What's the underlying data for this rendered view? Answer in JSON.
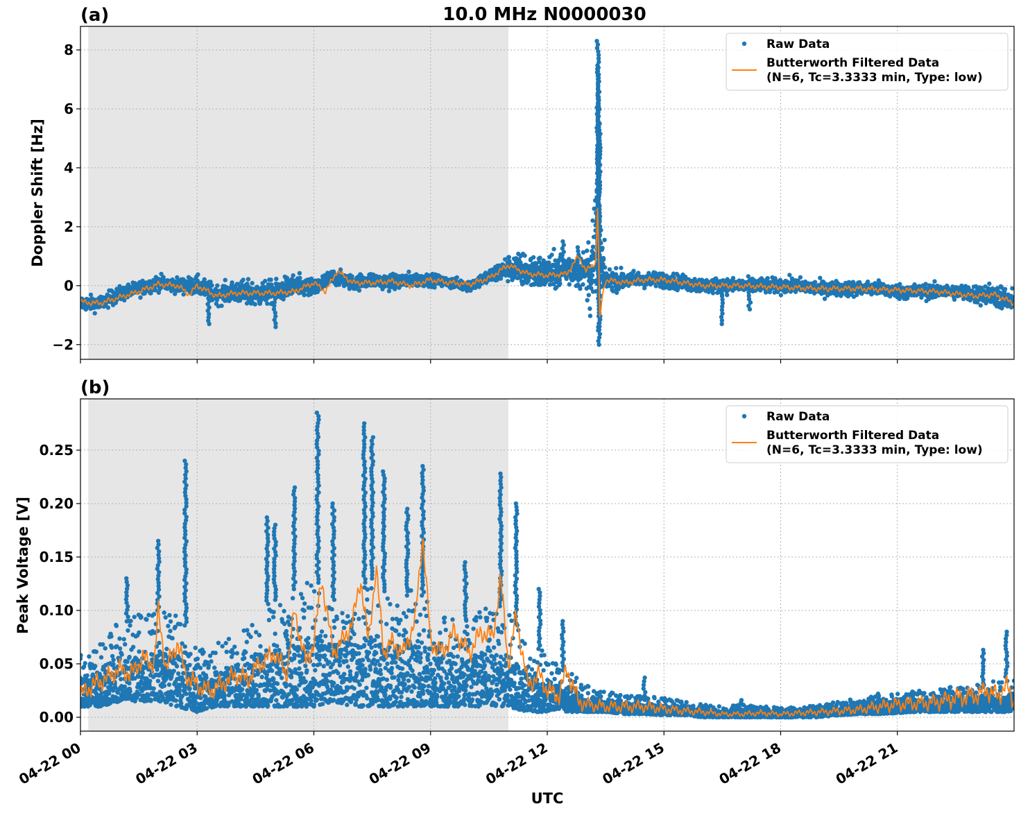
{
  "figure": {
    "title": "10.0 MHz N0000030",
    "xlabel": "UTC",
    "colors": {
      "raw": "#1f77b4",
      "filtered": "#ff7f0e",
      "night_shade": "#e6e6e6",
      "grid": "#b0b0b0"
    }
  },
  "chart_data": [
    {
      "type": "scatter",
      "panel_label": "(a)",
      "title": "10.0 MHz N0000030",
      "xlabel": "",
      "ylabel": "Doppler Shift [Hz]",
      "xlim_hours": [
        0,
        24
      ],
      "ylim": [
        -2.5,
        8.8
      ],
      "yticks": [
        -2,
        0,
        2,
        4,
        6,
        8
      ],
      "ytick_labels": [
        "−2",
        "0",
        "2",
        "4",
        "6",
        "8"
      ],
      "xticks_hours": [
        0,
        3,
        6,
        9,
        12,
        15,
        18,
        21
      ],
      "grid": true,
      "legend_position": "upper right",
      "shaded_interval_hours": [
        0.2,
        11.0
      ],
      "series": [
        {
          "name": "Raw Data",
          "style": "dots",
          "x_hours": [
            0.0,
            0.5,
            1.0,
            1.5,
            2.0,
            2.5,
            3.0,
            3.5,
            4.0,
            4.5,
            5.0,
            5.5,
            6.0,
            6.5,
            7.0,
            7.5,
            8.0,
            8.5,
            9.0,
            9.5,
            10.0,
            10.5,
            11.0,
            11.5,
            12.0,
            12.5,
            13.0,
            13.3,
            13.5,
            14.0,
            14.5,
            15.0,
            15.5,
            16.0,
            16.5,
            17.0,
            17.5,
            18.0,
            18.5,
            19.0,
            19.5,
            20.0,
            20.5,
            21.0,
            21.5,
            22.0,
            22.5,
            23.0,
            23.5,
            24.0
          ],
          "y_center": [
            -0.6,
            -0.6,
            -0.3,
            -0.1,
            0.1,
            0.0,
            0.0,
            -0.3,
            -0.2,
            -0.3,
            -0.2,
            0.0,
            -0.1,
            0.3,
            0.1,
            0.2,
            0.1,
            0.2,
            0.2,
            0.1,
            0.0,
            0.3,
            0.6,
            0.5,
            0.4,
            0.6,
            0.5,
            1.0,
            0.2,
            0.2,
            0.2,
            0.2,
            0.1,
            0.0,
            0.0,
            0.0,
            0.0,
            0.0,
            0.0,
            -0.1,
            -0.1,
            -0.1,
            -0.1,
            -0.2,
            -0.2,
            -0.2,
            -0.2,
            -0.3,
            -0.3,
            -0.6
          ],
          "y_spread": [
            0.2,
            0.2,
            0.2,
            0.2,
            0.2,
            0.2,
            0.25,
            0.25,
            0.3,
            0.35,
            0.3,
            0.3,
            0.25,
            0.2,
            0.2,
            0.2,
            0.2,
            0.2,
            0.15,
            0.15,
            0.15,
            0.2,
            0.35,
            0.5,
            0.45,
            0.5,
            0.5,
            3.0,
            0.3,
            0.25,
            0.2,
            0.2,
            0.2,
            0.2,
            0.2,
            0.2,
            0.2,
            0.2,
            0.2,
            0.2,
            0.2,
            0.2,
            0.2,
            0.2,
            0.2,
            0.2,
            0.2,
            0.25,
            0.3,
            0.35
          ],
          "outliers": [
            [
              13.3,
              8.3
            ],
            [
              13.32,
              7.4
            ],
            [
              13.3,
              6.4
            ],
            [
              13.34,
              5.5
            ],
            [
              13.31,
              4.6
            ],
            [
              13.33,
              -2.0
            ],
            [
              13.34,
              -1.5
            ],
            [
              3.3,
              -1.3
            ],
            [
              5.0,
              -1.4
            ],
            [
              16.5,
              -1.3
            ],
            [
              12.4,
              1.5
            ],
            [
              12.8,
              1.3
            ],
            [
              17.2,
              -0.8
            ]
          ]
        },
        {
          "name": "Butterworth Filtered Data\n(N=6, Tc=3.3333 min, Type: low)",
          "style": "line",
          "x_hours": [
            0.0,
            0.5,
            1.0,
            1.5,
            2.0,
            2.5,
            2.8,
            3.0,
            3.5,
            4.0,
            4.5,
            5.0,
            5.5,
            6.0,
            6.3,
            6.6,
            7.0,
            7.5,
            8.0,
            8.5,
            9.0,
            9.5,
            10.0,
            10.5,
            11.0,
            11.5,
            12.0,
            12.5,
            12.8,
            13.0,
            13.25,
            13.3,
            13.35,
            13.4,
            13.5,
            14.0,
            14.5,
            15.0,
            16.0,
            17.0,
            18.0,
            19.0,
            20.0,
            21.0,
            22.0,
            23.0,
            23.5,
            24.0
          ],
          "values": [
            -0.55,
            -0.6,
            -0.4,
            -0.2,
            0.05,
            0.0,
            -0.3,
            0.0,
            -0.35,
            -0.25,
            -0.25,
            -0.25,
            -0.2,
            0.1,
            -0.2,
            0.5,
            0.1,
            0.1,
            0.15,
            0.0,
            0.2,
            0.1,
            0.05,
            0.25,
            0.7,
            0.4,
            0.35,
            0.4,
            1.0,
            0.5,
            0.8,
            2.9,
            -1.3,
            -0.5,
            0.2,
            0.1,
            0.2,
            0.2,
            0.0,
            0.0,
            -0.05,
            -0.1,
            -0.1,
            -0.15,
            -0.2,
            -0.35,
            -0.3,
            -0.6
          ]
        }
      ]
    },
    {
      "type": "scatter",
      "panel_label": "(b)",
      "title": "",
      "xlabel": "UTC",
      "ylabel": "Peak Voltage [V]",
      "xlim_hours": [
        0,
        24
      ],
      "ylim": [
        -0.013,
        0.298
      ],
      "yticks": [
        0.0,
        0.05,
        0.1,
        0.15,
        0.2,
        0.25
      ],
      "ytick_labels": [
        "0.00",
        "0.05",
        "0.10",
        "0.15",
        "0.20",
        "0.25"
      ],
      "xticks_hours": [
        0,
        3,
        6,
        9,
        12,
        15,
        18,
        21
      ],
      "xtick_labels": [
        "04-22 00",
        "04-22 03",
        "04-22 06",
        "04-22 09",
        "04-22 12",
        "04-22 15",
        "04-22 18",
        "04-22 21"
      ],
      "grid": true,
      "legend_position": "upper right",
      "shaded_interval_hours": [
        0.2,
        11.0
      ],
      "series": [
        {
          "name": "Raw Data",
          "style": "dots",
          "x_hours": [
            0.0,
            0.5,
            1.0,
            1.5,
            2.0,
            2.5,
            3.0,
            3.5,
            4.0,
            4.5,
            5.0,
            5.5,
            6.0,
            6.5,
            7.0,
            7.5,
            8.0,
            8.5,
            9.0,
            9.5,
            10.0,
            10.5,
            11.0,
            11.5,
            12.0,
            12.5,
            13.0,
            13.5,
            14.0,
            14.5,
            15.0,
            15.5,
            16.0,
            16.5,
            17.0,
            17.5,
            18.0,
            18.5,
            19.0,
            19.5,
            20.0,
            20.5,
            21.0,
            21.5,
            22.0,
            22.5,
            23.0,
            23.5,
            24.0
          ],
          "y_low": [
            0.01,
            0.01,
            0.015,
            0.015,
            0.015,
            0.01,
            0.005,
            0.01,
            0.01,
            0.01,
            0.01,
            0.01,
            0.01,
            0.015,
            0.01,
            0.01,
            0.01,
            0.01,
            0.01,
            0.01,
            0.01,
            0.01,
            0.01,
            0.005,
            0.005,
            0.005,
            0.005,
            0.005,
            0.003,
            0.003,
            0.002,
            0.002,
            0.0,
            0.0,
            0.0,
            0.0,
            0.0,
            0.0,
            0.0,
            0.002,
            0.003,
            0.003,
            0.004,
            0.005,
            0.005,
            0.005,
            0.005,
            0.005,
            0.005
          ],
          "y_high": [
            0.06,
            0.07,
            0.09,
            0.1,
            0.1,
            0.1,
            0.065,
            0.07,
            0.08,
            0.1,
            0.11,
            0.12,
            0.13,
            0.11,
            0.12,
            0.13,
            0.11,
            0.12,
            0.11,
            0.1,
            0.09,
            0.11,
            0.1,
            0.07,
            0.06,
            0.045,
            0.03,
            0.025,
            0.02,
            0.02,
            0.018,
            0.015,
            0.012,
            0.01,
            0.012,
            0.01,
            0.01,
            0.01,
            0.012,
            0.015,
            0.018,
            0.02,
            0.022,
            0.025,
            0.025,
            0.03,
            0.03,
            0.035,
            0.04
          ],
          "spikes": [
            [
              2.7,
              0.24
            ],
            [
              2.0,
              0.165
            ],
            [
              5.5,
              0.215
            ],
            [
              6.1,
              0.285
            ],
            [
              7.3,
              0.275
            ],
            [
              7.5,
              0.262
            ],
            [
              8.8,
              0.235
            ],
            [
              10.8,
              0.228
            ],
            [
              11.2,
              0.2
            ],
            [
              4.8,
              0.187
            ],
            [
              8.4,
              0.195
            ],
            [
              9.9,
              0.145
            ],
            [
              11.8,
              0.12
            ],
            [
              12.4,
              0.09
            ],
            [
              14.5,
              0.037
            ],
            [
              17.0,
              0.016
            ],
            [
              20.5,
              0.022
            ],
            [
              23.2,
              0.063
            ],
            [
              23.8,
              0.08
            ],
            [
              7.8,
              0.23
            ],
            [
              6.5,
              0.2
            ],
            [
              5.0,
              0.18
            ],
            [
              1.2,
              0.13
            ]
          ]
        },
        {
          "name": "Butterworth Filtered Data\n(N=6, Tc=3.3333 min, Type: low)",
          "style": "line",
          "x_hours": [
            0.0,
            0.3,
            0.6,
            1.0,
            1.3,
            1.6,
            1.9,
            2.0,
            2.2,
            2.5,
            2.7,
            3.0,
            3.3,
            3.6,
            4.0,
            4.3,
            4.6,
            5.0,
            5.3,
            5.5,
            5.8,
            6.0,
            6.2,
            6.5,
            6.8,
            7.0,
            7.2,
            7.4,
            7.6,
            7.8,
            8.0,
            8.3,
            8.6,
            8.8,
            9.0,
            9.3,
            9.6,
            10.0,
            10.3,
            10.6,
            10.8,
            11.0,
            11.2,
            11.5,
            11.8,
            12.0,
            12.3,
            12.5,
            12.8,
            13.0,
            13.5,
            14.0,
            14.5,
            15.0,
            15.5,
            16.0,
            16.5,
            17.0,
            17.5,
            18.0,
            18.5,
            19.0,
            19.5,
            20.0,
            20.5,
            21.0,
            21.5,
            22.0,
            22.5,
            23.0,
            23.3,
            23.6,
            23.8,
            24.0
          ],
          "values": [
            0.02,
            0.03,
            0.035,
            0.045,
            0.04,
            0.055,
            0.05,
            0.1,
            0.045,
            0.07,
            0.04,
            0.03,
            0.025,
            0.03,
            0.04,
            0.035,
            0.05,
            0.06,
            0.04,
            0.1,
            0.05,
            0.07,
            0.13,
            0.06,
            0.075,
            0.09,
            0.13,
            0.07,
            0.14,
            0.06,
            0.07,
            0.06,
            0.09,
            0.17,
            0.07,
            0.06,
            0.08,
            0.06,
            0.08,
            0.075,
            0.13,
            0.05,
            0.095,
            0.03,
            0.04,
            0.025,
            0.02,
            0.045,
            0.015,
            0.012,
            0.01,
            0.01,
            0.01,
            0.008,
            0.006,
            0.005,
            0.003,
            0.003,
            0.004,
            0.003,
            0.004,
            0.005,
            0.006,
            0.007,
            0.01,
            0.012,
            0.013,
            0.014,
            0.018,
            0.02,
            0.025,
            0.02,
            0.03,
            0.015
          ]
        }
      ]
    }
  ]
}
